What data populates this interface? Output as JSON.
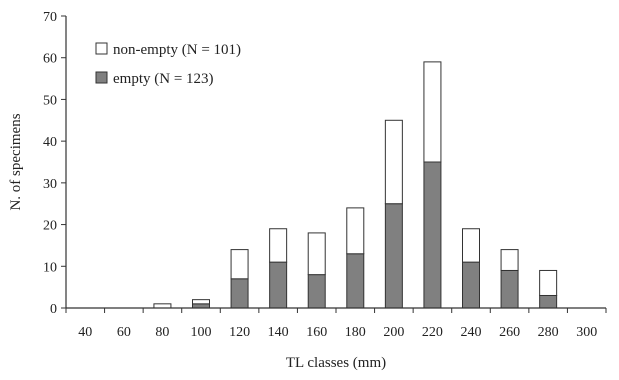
{
  "chart_data": {
    "type": "bar",
    "stacked": true,
    "title": "",
    "xlabel": "TL classes (mm)",
    "ylabel": "N. of specimens",
    "ylim": [
      0,
      70
    ],
    "yticks": [
      0,
      10,
      20,
      30,
      40,
      50,
      60,
      70
    ],
    "grid": false,
    "legend_position": "top-left",
    "categories": [
      "40",
      "60",
      "80",
      "100",
      "120",
      "140",
      "160",
      "180",
      "200",
      "220",
      "240",
      "260",
      "280",
      "300"
    ],
    "series": [
      {
        "name": "empty (N = 123)",
        "color": "#808080",
        "values": [
          0,
          0,
          0,
          1,
          7,
          11,
          8,
          13,
          25,
          35,
          11,
          9,
          3,
          0
        ]
      },
      {
        "name": "non-empty (N = 101)",
        "color": "#ffffff",
        "values": [
          0,
          0,
          1,
          1,
          7,
          8,
          10,
          11,
          20,
          24,
          8,
          5,
          6,
          0
        ]
      }
    ]
  }
}
